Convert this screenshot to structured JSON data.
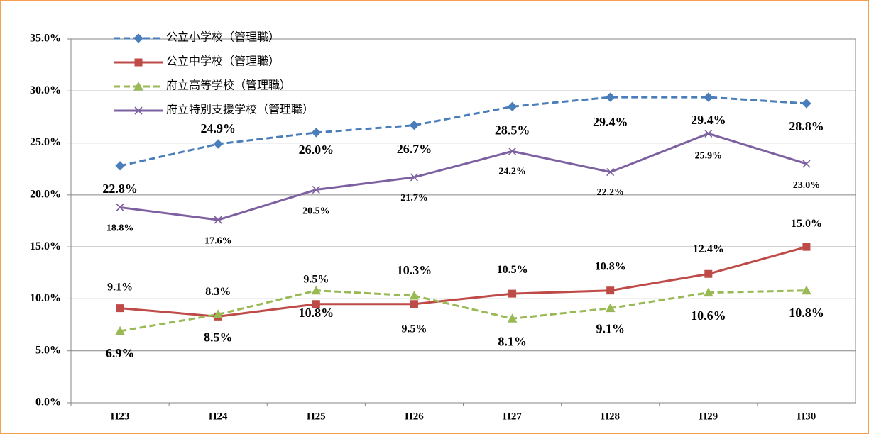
{
  "chart_data": {
    "type": "line",
    "categories": [
      "H23",
      "H24",
      "H25",
      "H26",
      "H27",
      "H28",
      "H29",
      "H30"
    ],
    "series": [
      {
        "name": "公立小学校（管理職）",
        "color": "#4a7ebb",
        "dashed": true,
        "marker": "diamond",
        "values": [
          22.8,
          24.9,
          26.0,
          26.7,
          28.5,
          29.4,
          29.4,
          28.8
        ],
        "value_labels": [
          "22.8%",
          "24.9%",
          "26.0%",
          "26.7%",
          "28.5%",
          "29.4%",
          "29.4%",
          "28.8%"
        ]
      },
      {
        "name": "公立中学校（管理職）",
        "color": "#be4b48",
        "dashed": false,
        "marker": "square",
        "values": [
          9.1,
          8.3,
          9.5,
          9.5,
          10.5,
          10.8,
          12.4,
          15.0
        ],
        "value_labels": [
          "9.1%",
          "8.3%",
          "9.5%",
          "9.5%",
          "10.5%",
          "10.8%",
          "12.4%",
          "15.0%"
        ]
      },
      {
        "name": "府立高等学校（管理職）",
        "color": "#98b954",
        "dashed": true,
        "marker": "triangle",
        "values": [
          6.9,
          8.5,
          10.8,
          10.3,
          8.1,
          9.1,
          10.6,
          10.8
        ],
        "value_labels": [
          "6.9%",
          "8.5%",
          "10.8%",
          "10.3%",
          "8.1%",
          "9.1%",
          "10.6%",
          "10.8%"
        ]
      },
      {
        "name": "府立特別支援学校（管理職）",
        "color": "#7d60a0",
        "dashed": false,
        "marker": "x",
        "values": [
          18.8,
          17.6,
          20.5,
          21.7,
          24.2,
          22.2,
          25.9,
          23.0
        ],
        "value_labels": [
          "18.8%",
          "17.6%",
          "20.5%",
          "21.7%",
          "24.2%",
          "22.2%",
          "25.9%",
          "23.0%"
        ]
      }
    ],
    "ylim": [
      0,
      35
    ],
    "yticks": [
      {
        "value": 0,
        "label": "0.0%"
      },
      {
        "value": 5,
        "label": "5.0%"
      },
      {
        "value": 10,
        "label": "10.0%"
      },
      {
        "value": 15,
        "label": "15.0%"
      },
      {
        "value": 20,
        "label": "20.0%"
      },
      {
        "value": 25,
        "label": "25.0%"
      },
      {
        "value": 30,
        "label": "30.0%"
      },
      {
        "value": 35,
        "label": "35.0%"
      }
    ],
    "grid": true,
    "legend": "top-left"
  }
}
